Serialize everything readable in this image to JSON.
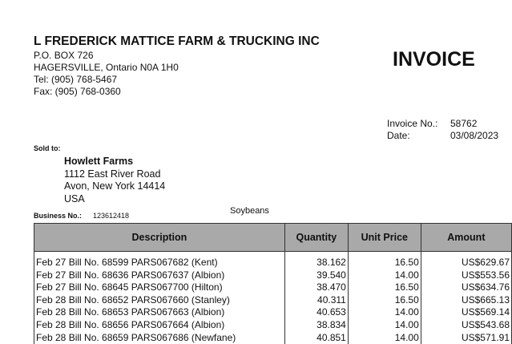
{
  "seller": {
    "name": "L FREDERICK MATTICE FARM & TRUCKING INC",
    "address": [
      "P.O. BOX 726",
      "HAGERSVILLE, Ontario N0A 1H0",
      "Tel: (905) 768-5467",
      "Fax: (905) 768-0360"
    ]
  },
  "title": "INVOICE",
  "invoice_no_label": "Invoice No.:",
  "invoice_no": "58762",
  "date_label": "Date:",
  "date": "03/08/2023",
  "sold_to_label": "Sold to:",
  "buyer": {
    "name": "Howlett Farms",
    "address": [
      "1112 East River Road",
      "Avon, New York  14414",
      "USA"
    ]
  },
  "business_no_label": "Business No.:",
  "business_no": "123612418",
  "product": "Soybeans",
  "table": {
    "headers": [
      "Description",
      "Quantity",
      "Unit Price",
      "Amount"
    ],
    "rows": [
      [
        "Feb 27  Bill No. 68599  PARS067682 (Kent)",
        "38.162",
        "16.50",
        "US$629.67"
      ],
      [
        "Feb 27  Bill No. 68636  PARS067637 (Albion)",
        "39.540",
        "14.00",
        "US$553.56"
      ],
      [
        "Feb 27  Bill No. 68645  PARS067700 (Hilton)",
        "38.470",
        "16.50",
        "US$634.76"
      ],
      [
        "Feb 28  Bill No. 68652  PARS067660 (Stanley)",
        "40.311",
        "16.50",
        "US$665.13"
      ],
      [
        "Feb 28  Bill No. 68653  PARS067663 (Albion)",
        "40.653",
        "14.00",
        "US$569.14"
      ],
      [
        "Feb 28  Bill No. 68656  PARS067664 (Albion)",
        "38.834",
        "14.00",
        "US$543.68"
      ],
      [
        "Feb 28  Bill No. 68659  PARS067686 (Newfane)",
        "40.851",
        "14.00",
        "US$571.91"
      ]
    ]
  }
}
